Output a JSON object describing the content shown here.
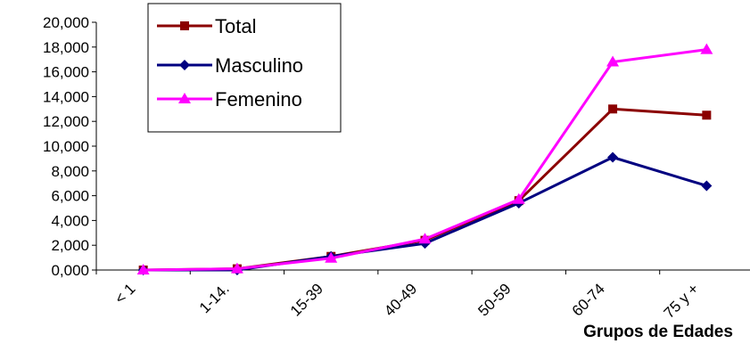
{
  "chart_data": {
    "type": "line",
    "categories": [
      "< 1",
      "1-14.",
      "15-39",
      "40-49",
      "50-59",
      "60-74",
      "75 y +"
    ],
    "series": [
      {
        "name": "Total",
        "color": "#8B0000",
        "marker": "square",
        "values": [
          0,
          100,
          1100,
          2400,
          5600,
          13000,
          12500
        ]
      },
      {
        "name": "Masculino",
        "color": "#000080",
        "marker": "diamond",
        "values": [
          0,
          0,
          1100,
          2150,
          5400,
          9100,
          6800
        ]
      },
      {
        "name": "Femenino",
        "color": "#FF00FF",
        "marker": "triangle",
        "values": [
          0,
          100,
          950,
          2500,
          5700,
          16800,
          17800
        ]
      }
    ],
    "ylim": [
      0,
      20000
    ],
    "yticks": [
      0,
      2000,
      4000,
      6000,
      8000,
      10000,
      12000,
      14000,
      16000,
      18000,
      20000
    ],
    "ytick_labels": [
      "0,000",
      "2,000",
      "4,000",
      "6,000",
      "8,000",
      "10,000",
      "12,000",
      "14,000",
      "16,000",
      "18,000",
      "20,000"
    ],
    "xlabel": "Grupos de Edades",
    "ylabel": "",
    "title": "",
    "grid": false,
    "legend": "top-left"
  }
}
